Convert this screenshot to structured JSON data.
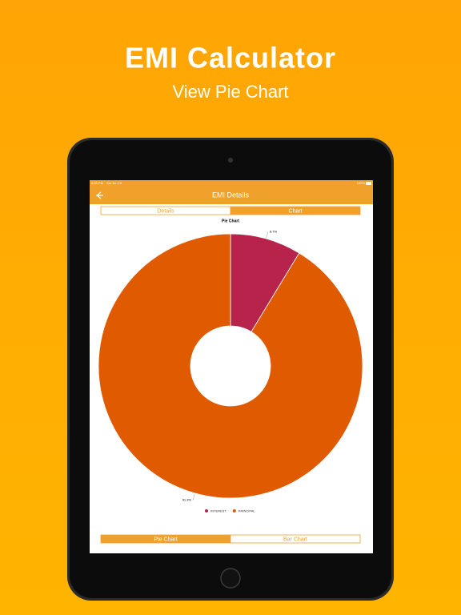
{
  "header": {
    "title": "EMI Calculator",
    "subtitle": "View Pie Chart"
  },
  "status_bar": {
    "time": "9:53 PM",
    "date": "Sat Jun 15",
    "battery": "100%"
  },
  "nav": {
    "title": "EMI Details"
  },
  "tabs": [
    "Details",
    "Chart"
  ],
  "chart_data": {
    "type": "pie",
    "title": "Pie Chart",
    "categories": [
      "INTEREST",
      "PRINCIPAL"
    ],
    "values": [
      8.7,
      91.3
    ],
    "value_labels": [
      "8.7%",
      "91.3%"
    ],
    "colors": [
      "#b8234b",
      "#e05a00"
    ]
  },
  "bottom_tabs": [
    "Pie Chart",
    "Bar Chart"
  ]
}
